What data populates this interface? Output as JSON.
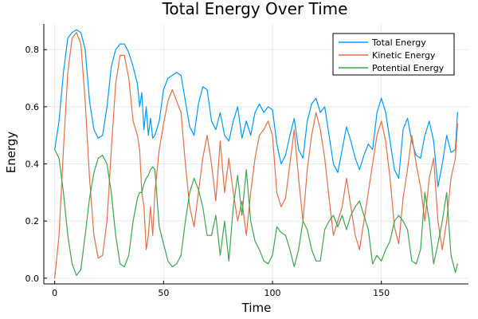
{
  "chart_data": {
    "type": "line",
    "title": "Total Energy Over Time",
    "xlabel": "Time",
    "ylabel": "Energy",
    "xlim": [
      -5,
      190
    ],
    "ylim": [
      -0.02,
      0.89
    ],
    "xticks": [
      0,
      50,
      100,
      150
    ],
    "xtick_labels": [
      "0",
      "50",
      "100",
      "150"
    ],
    "yticks": [
      0.0,
      0.2,
      0.4,
      0.6,
      0.8
    ],
    "ytick_labels": [
      "0.0",
      "0.2",
      "0.4",
      "0.6",
      "0.8"
    ],
    "grid": true,
    "legend_position": "top-right",
    "series": [
      {
        "name": "Total Energy",
        "color": "#009AFA",
        "x": [
          0,
          2,
          4,
          6,
          8,
          10,
          12,
          14,
          16,
          18,
          20,
          22,
          24,
          26,
          28,
          30,
          32,
          34,
          36,
          38,
          39,
          40,
          41,
          42,
          43,
          44,
          45,
          46,
          48,
          50,
          52,
          54,
          56,
          58,
          60,
          62,
          64,
          66,
          68,
          70,
          72,
          74,
          76,
          78,
          80,
          82,
          84,
          86,
          88,
          90,
          92,
          94,
          96,
          98,
          100,
          102,
          104,
          106,
          108,
          110,
          112,
          114,
          116,
          118,
          120,
          122,
          124,
          126,
          128,
          130,
          132,
          134,
          136,
          138,
          140,
          142,
          144,
          146,
          148,
          150,
          152,
          154,
          156,
          158,
          160,
          162,
          164,
          166,
          168,
          170,
          172,
          174,
          176,
          178,
          180,
          182,
          184,
          185
        ],
        "values": [
          0.45,
          0.55,
          0.72,
          0.84,
          0.86,
          0.87,
          0.86,
          0.8,
          0.62,
          0.52,
          0.49,
          0.5,
          0.6,
          0.74,
          0.8,
          0.82,
          0.82,
          0.79,
          0.74,
          0.68,
          0.6,
          0.65,
          0.52,
          0.6,
          0.5,
          0.56,
          0.49,
          0.5,
          0.55,
          0.66,
          0.7,
          0.71,
          0.72,
          0.71,
          0.62,
          0.53,
          0.5,
          0.61,
          0.67,
          0.66,
          0.55,
          0.52,
          0.58,
          0.5,
          0.48,
          0.55,
          0.6,
          0.49,
          0.55,
          0.5,
          0.58,
          0.61,
          0.58,
          0.6,
          0.59,
          0.47,
          0.4,
          0.43,
          0.5,
          0.56,
          0.45,
          0.42,
          0.55,
          0.61,
          0.63,
          0.58,
          0.6,
          0.5,
          0.4,
          0.37,
          0.45,
          0.53,
          0.48,
          0.42,
          0.38,
          0.43,
          0.47,
          0.45,
          0.58,
          0.63,
          0.58,
          0.48,
          0.38,
          0.35,
          0.52,
          0.56,
          0.48,
          0.43,
          0.42,
          0.5,
          0.55,
          0.48,
          0.32,
          0.4,
          0.5,
          0.44,
          0.45,
          0.58
        ]
      },
      {
        "name": "Kinetic Energy",
        "color": "#E26F46",
        "x": [
          0,
          2,
          4,
          6,
          8,
          10,
          12,
          14,
          16,
          18,
          20,
          22,
          24,
          26,
          28,
          30,
          32,
          34,
          36,
          38,
          39,
          40,
          41,
          42,
          43,
          44,
          45,
          46,
          48,
          50,
          52,
          54,
          56,
          58,
          60,
          62,
          64,
          66,
          68,
          70,
          72,
          74,
          76,
          78,
          80,
          82,
          84,
          86,
          88,
          90,
          92,
          94,
          96,
          98,
          100,
          102,
          104,
          106,
          108,
          110,
          112,
          114,
          116,
          118,
          120,
          122,
          124,
          126,
          128,
          130,
          132,
          134,
          136,
          138,
          140,
          142,
          144,
          146,
          148,
          150,
          152,
          154,
          156,
          158,
          160,
          162,
          164,
          166,
          168,
          170,
          172,
          174,
          176,
          178,
          180,
          182,
          184,
          185
        ],
        "values": [
          0.0,
          0.15,
          0.45,
          0.72,
          0.84,
          0.86,
          0.82,
          0.62,
          0.35,
          0.15,
          0.07,
          0.08,
          0.2,
          0.45,
          0.68,
          0.78,
          0.78,
          0.7,
          0.55,
          0.5,
          0.45,
          0.3,
          0.25,
          0.1,
          0.15,
          0.25,
          0.15,
          0.3,
          0.45,
          0.54,
          0.62,
          0.66,
          0.62,
          0.58,
          0.4,
          0.25,
          0.18,
          0.3,
          0.42,
          0.5,
          0.4,
          0.27,
          0.48,
          0.3,
          0.42,
          0.3,
          0.2,
          0.27,
          0.15,
          0.3,
          0.42,
          0.5,
          0.52,
          0.55,
          0.5,
          0.3,
          0.25,
          0.28,
          0.4,
          0.52,
          0.35,
          0.2,
          0.38,
          0.5,
          0.58,
          0.52,
          0.42,
          0.28,
          0.15,
          0.2,
          0.25,
          0.35,
          0.25,
          0.15,
          0.1,
          0.2,
          0.3,
          0.4,
          0.5,
          0.55,
          0.48,
          0.35,
          0.18,
          0.12,
          0.28,
          0.38,
          0.5,
          0.4,
          0.32,
          0.2,
          0.35,
          0.42,
          0.2,
          0.1,
          0.2,
          0.35,
          0.42,
          0.54
        ]
      },
      {
        "name": "Potential Energy",
        "color": "#3DA44D",
        "x": [
          0,
          2,
          4,
          6,
          8,
          10,
          12,
          14,
          16,
          18,
          20,
          22,
          24,
          26,
          28,
          30,
          32,
          34,
          36,
          38,
          39,
          40,
          41,
          42,
          43,
          44,
          45,
          46,
          48,
          50,
          52,
          54,
          56,
          58,
          60,
          62,
          64,
          66,
          68,
          70,
          72,
          74,
          76,
          78,
          80,
          82,
          84,
          86,
          88,
          90,
          92,
          94,
          96,
          98,
          100,
          102,
          104,
          106,
          108,
          110,
          112,
          114,
          116,
          118,
          120,
          122,
          124,
          126,
          128,
          130,
          132,
          134,
          136,
          138,
          140,
          142,
          144,
          146,
          148,
          150,
          152,
          154,
          156,
          158,
          160,
          162,
          164,
          166,
          168,
          170,
          172,
          174,
          176,
          178,
          180,
          182,
          184,
          185
        ],
        "values": [
          0.45,
          0.42,
          0.3,
          0.15,
          0.05,
          0.01,
          0.03,
          0.15,
          0.28,
          0.37,
          0.42,
          0.43,
          0.4,
          0.3,
          0.15,
          0.05,
          0.04,
          0.08,
          0.2,
          0.28,
          0.3,
          0.3,
          0.33,
          0.35,
          0.36,
          0.38,
          0.39,
          0.38,
          0.18,
          0.12,
          0.06,
          0.04,
          0.05,
          0.08,
          0.2,
          0.3,
          0.35,
          0.31,
          0.25,
          0.15,
          0.15,
          0.22,
          0.08,
          0.2,
          0.06,
          0.25,
          0.36,
          0.22,
          0.38,
          0.2,
          0.13,
          0.1,
          0.06,
          0.05,
          0.08,
          0.18,
          0.16,
          0.15,
          0.1,
          0.04,
          0.1,
          0.2,
          0.17,
          0.1,
          0.06,
          0.06,
          0.17,
          0.2,
          0.22,
          0.18,
          0.22,
          0.17,
          0.22,
          0.25,
          0.27,
          0.22,
          0.17,
          0.05,
          0.08,
          0.06,
          0.1,
          0.13,
          0.2,
          0.22,
          0.2,
          0.17,
          0.06,
          0.05,
          0.1,
          0.3,
          0.2,
          0.05,
          0.12,
          0.2,
          0.3,
          0.08,
          0.02,
          0.05
        ]
      }
    ]
  }
}
